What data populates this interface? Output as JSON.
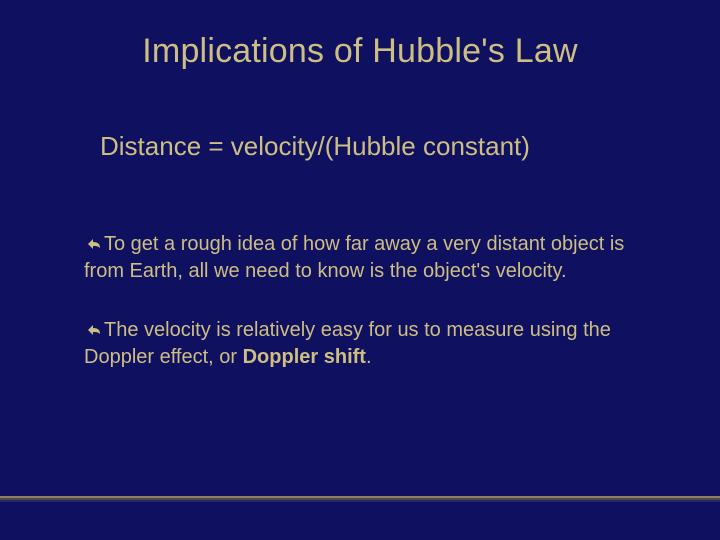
{
  "slide": {
    "background_color": "#0f1060",
    "text_color": "#cdbe82",
    "title_color": "#cdbe82",
    "bullet_color": "#cdbe82",
    "footer_line_colors": [
      "#b8a864",
      "#7a6d3a",
      "#3a3a80"
    ],
    "title": "Implications of Hubble's Law",
    "title_fontsize": 34,
    "equation": "Distance = velocity/(Hubble constant)",
    "equation_fontsize": 26,
    "body_fontsize": 20,
    "bullets": [
      {
        "segments": [
          {
            "text": "To get a rough idea of how far away a very distant object is from Earth, all we need to know is the object's velocity.",
            "bold": false
          }
        ]
      },
      {
        "segments": [
          {
            "text": "The velocity is relatively easy for us to measure using the Doppler effect, or ",
            "bold": false
          },
          {
            "text": "Doppler shift",
            "bold": true
          },
          {
            "text": ".",
            "bold": false
          }
        ]
      }
    ],
    "bullet_glyph_svg": "arrow-left-curved"
  }
}
